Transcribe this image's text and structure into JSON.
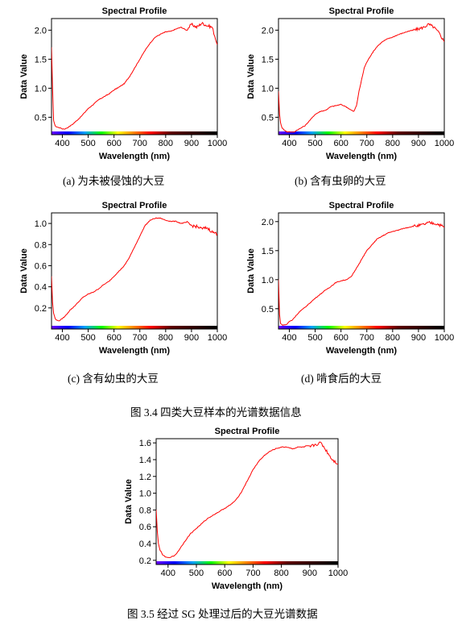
{
  "chart_data": [
    {
      "type": "line",
      "title": "Spectral Profile",
      "xlabel": "Wavelength (nm)",
      "ylabel": "Data Value",
      "xlim": [
        358,
        1000
      ],
      "ylim": [
        0.2,
        2.2
      ],
      "xticks": [
        400,
        500,
        600,
        700,
        800,
        900,
        1000
      ],
      "yticks": [
        0.5,
        1.0,
        1.5,
        2.0
      ],
      "ytick_labels": [
        "0.5",
        "1.0",
        "1.5",
        "2.0"
      ],
      "grid": false,
      "color": "#ff0000",
      "x": [
        358,
        362,
        366,
        372,
        380,
        390,
        400,
        410,
        420,
        430,
        440,
        450,
        460,
        470,
        480,
        490,
        500,
        520,
        540,
        560,
        580,
        600,
        620,
        640,
        660,
        680,
        700,
        720,
        740,
        760,
        780,
        800,
        820,
        840,
        860,
        880,
        900,
        920,
        940,
        960,
        980,
        990,
        1000
      ],
      "y": [
        1.7,
        1.0,
        0.45,
        0.35,
        0.33,
        0.32,
        0.3,
        0.3,
        0.32,
        0.35,
        0.38,
        0.42,
        0.46,
        0.5,
        0.55,
        0.6,
        0.65,
        0.72,
        0.8,
        0.85,
        0.9,
        0.97,
        1.02,
        1.08,
        1.2,
        1.35,
        1.5,
        1.65,
        1.78,
        1.88,
        1.93,
        1.97,
        1.98,
        2.02,
        2.05,
        2.0,
        2.1,
        2.05,
        2.12,
        2.08,
        2.05,
        1.9,
        1.75
      ]
    },
    {
      "type": "line",
      "title": "Spectral Profile",
      "xlabel": "Wavelength (nm)",
      "ylabel": "Data Value",
      "xlim": [
        358,
        1000
      ],
      "ylim": [
        0.2,
        2.2
      ],
      "xticks": [
        400,
        500,
        600,
        700,
        800,
        900,
        1000
      ],
      "yticks": [
        0.5,
        1.0,
        1.5,
        2.0
      ],
      "ytick_labels": [
        "0.5",
        "1.0",
        "1.5",
        "2.0"
      ],
      "grid": false,
      "color": "#ff0000",
      "x": [
        358,
        362,
        366,
        372,
        380,
        390,
        400,
        410,
        420,
        430,
        440,
        450,
        460,
        480,
        500,
        520,
        540,
        560,
        580,
        600,
        620,
        640,
        650,
        660,
        670,
        680,
        690,
        700,
        720,
        740,
        760,
        780,
        800,
        820,
        840,
        860,
        880,
        900,
        920,
        940,
        960,
        980,
        1000
      ],
      "y": [
        0.95,
        0.55,
        0.4,
        0.32,
        0.28,
        0.25,
        0.25,
        0.24,
        0.25,
        0.28,
        0.3,
        0.33,
        0.35,
        0.45,
        0.55,
        0.6,
        0.62,
        0.68,
        0.7,
        0.72,
        0.68,
        0.62,
        0.6,
        0.7,
        0.95,
        1.15,
        1.35,
        1.45,
        1.6,
        1.72,
        1.8,
        1.85,
        1.88,
        1.92,
        1.95,
        1.98,
        2.0,
        2.02,
        2.05,
        2.1,
        2.05,
        1.95,
        1.8
      ]
    },
    {
      "type": "line",
      "title": "Spectral Profile",
      "xlabel": "Wavelength (nm)",
      "ylabel": "Data Value",
      "xlim": [
        358,
        1000
      ],
      "ylim": [
        0.0,
        1.1
      ],
      "xticks": [
        400,
        500,
        600,
        700,
        800,
        900,
        1000
      ],
      "yticks": [
        0.2,
        0.4,
        0.6,
        0.8,
        1.0
      ],
      "ytick_labels": [
        "0.2",
        "0.4",
        "0.6",
        "0.8",
        "1.0"
      ],
      "grid": false,
      "color": "#ff0000",
      "x": [
        358,
        362,
        366,
        372,
        380,
        390,
        400,
        410,
        420,
        430,
        440,
        460,
        480,
        500,
        520,
        540,
        560,
        580,
        600,
        620,
        640,
        660,
        680,
        700,
        720,
        740,
        760,
        780,
        800,
        820,
        840,
        860,
        880,
        900,
        920,
        940,
        960,
        980,
        1000
      ],
      "y": [
        0.5,
        0.25,
        0.15,
        0.1,
        0.08,
        0.08,
        0.1,
        0.12,
        0.15,
        0.18,
        0.2,
        0.25,
        0.3,
        0.33,
        0.35,
        0.38,
        0.42,
        0.45,
        0.5,
        0.55,
        0.6,
        0.68,
        0.78,
        0.88,
        0.98,
        1.03,
        1.05,
        1.05,
        1.03,
        1.02,
        1.02,
        1.0,
        1.01,
        0.98,
        0.97,
        0.95,
        0.96,
        0.92,
        0.9
      ]
    },
    {
      "type": "line",
      "title": "Spectral Profile",
      "xlabel": "Wavelength (nm)",
      "ylabel": "Data Value",
      "xlim": [
        358,
        1000
      ],
      "ylim": [
        0.15,
        2.15
      ],
      "xticks": [
        400,
        500,
        600,
        700,
        800,
        900,
        1000
      ],
      "yticks": [
        0.5,
        1.0,
        1.5,
        2.0
      ],
      "ytick_labels": [
        "0.5",
        "1.0",
        "1.5",
        "2.0"
      ],
      "grid": false,
      "color": "#ff0000",
      "x": [
        358,
        362,
        366,
        372,
        380,
        390,
        400,
        410,
        420,
        430,
        440,
        460,
        480,
        500,
        520,
        540,
        560,
        580,
        600,
        620,
        640,
        660,
        680,
        700,
        720,
        740,
        760,
        780,
        800,
        820,
        840,
        860,
        880,
        900,
        920,
        940,
        960,
        980,
        1000
      ],
      "y": [
        1.0,
        0.4,
        0.25,
        0.22,
        0.22,
        0.23,
        0.28,
        0.3,
        0.35,
        0.4,
        0.45,
        0.52,
        0.6,
        0.68,
        0.75,
        0.82,
        0.88,
        0.95,
        0.98,
        1.0,
        1.05,
        1.2,
        1.35,
        1.5,
        1.6,
        1.7,
        1.75,
        1.8,
        1.83,
        1.85,
        1.88,
        1.9,
        1.92,
        1.93,
        1.95,
        1.98,
        1.97,
        1.95,
        1.9
      ]
    },
    {
      "type": "line",
      "title": "Spectral Profile",
      "xlabel": "Wavelength (nm)",
      "ylabel": "Data Value",
      "xlim": [
        358,
        1000
      ],
      "ylim": [
        0.15,
        1.65
      ],
      "xticks": [
        400,
        500,
        600,
        700,
        800,
        900,
        1000
      ],
      "yticks": [
        0.2,
        0.4,
        0.6,
        0.8,
        1.0,
        1.2,
        1.4,
        1.6
      ],
      "ytick_labels": [
        "0.2",
        "0.4",
        "0.6",
        "0.8",
        "1.0",
        "1.2",
        "1.4",
        "1.6"
      ],
      "grid": false,
      "color": "#ff0000",
      "x": [
        358,
        362,
        366,
        372,
        380,
        390,
        400,
        410,
        420,
        430,
        440,
        460,
        480,
        500,
        520,
        540,
        560,
        580,
        600,
        620,
        640,
        660,
        680,
        700,
        720,
        740,
        760,
        780,
        800,
        820,
        840,
        860,
        880,
        900,
        920,
        940,
        960,
        980,
        1000
      ],
      "y": [
        0.8,
        0.55,
        0.4,
        0.32,
        0.27,
        0.24,
        0.23,
        0.24,
        0.25,
        0.28,
        0.33,
        0.43,
        0.52,
        0.58,
        0.64,
        0.7,
        0.74,
        0.78,
        0.82,
        0.86,
        0.92,
        1.02,
        1.15,
        1.28,
        1.38,
        1.45,
        1.5,
        1.53,
        1.55,
        1.55,
        1.53,
        1.55,
        1.55,
        1.55,
        1.58,
        1.6,
        1.5,
        1.4,
        1.35
      ]
    }
  ],
  "captions": {
    "a": "(a)  为未被侵蚀的大豆",
    "b": "(b)  含有虫卵的大豆",
    "c": "(c)  含有幼虫的大豆",
    "d": "(d)  啃食后的大豆",
    "fig34": "图 3.4  四类大豆样本的光谱数据信息",
    "fig35": "图 3.5  经过 SG 处理过后的大豆光谱数据"
  }
}
